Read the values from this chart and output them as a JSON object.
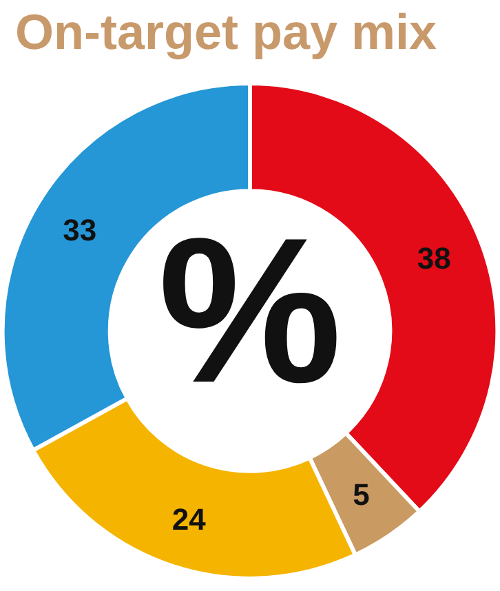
{
  "chart_data": {
    "type": "donut",
    "title": "On-target pay mix",
    "categories": [
      null,
      null,
      null,
      null
    ],
    "values": [
      38,
      5,
      24,
      33
    ],
    "colors": [
      "#e30b17",
      "#c99a62",
      "#f5b400",
      "#2596d6"
    ],
    "data_labels": true,
    "annotations": [
      "%"
    ]
  }
}
